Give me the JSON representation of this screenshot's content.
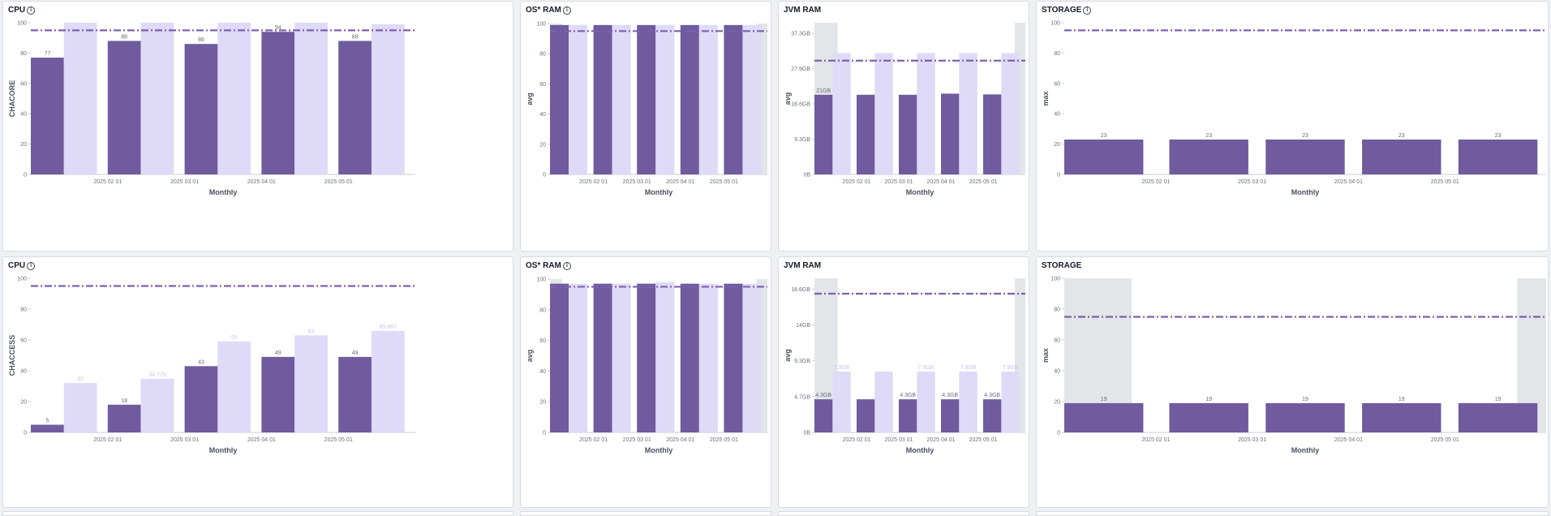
{
  "colors": {
    "primary": "#6f5b9e",
    "secondary": "#dedaf7",
    "gray": "#e3e5e9",
    "threshold": "#7b62b0"
  },
  "panels": [
    {
      "title": "CPU",
      "info": true,
      "ylabel": "CHACORE",
      "xlabel": "Monthly",
      "yticks": [
        "0",
        "20",
        "40",
        "60",
        "80",
        "100"
      ],
      "xticks": [
        "2025 02 01",
        "2025 03 01",
        "2025 04 01",
        "2025 05 01"
      ],
      "chart_data": {
        "type": "bar",
        "ylim": [
          0,
          100
        ],
        "threshold": 95,
        "series": [
          {
            "values": [
              77,
              88,
              86,
              94,
              88
            ],
            "labels": [
              "77",
              "88",
              "86",
              "94",
              "88"
            ]
          },
          {
            "values": [
              100,
              100,
              100,
              100,
              99
            ],
            "labels": [
              "",
              "",
              "",
              "",
              ""
            ]
          }
        ]
      }
    },
    {
      "title": "OS* RAM",
      "info": true,
      "ylabel": "avg",
      "xlabel": "Monthly",
      "yticks": [
        "0",
        "20",
        "40",
        "60",
        "80",
        "100"
      ],
      "xticks": [
        "2025 02 01",
        "2025 03 01",
        "2025 04 01",
        "2025 05 01"
      ],
      "chart_data": {
        "type": "bar",
        "ylim": [
          0,
          100
        ],
        "threshold": 95,
        "edge_gray": [
          100,
          100
        ],
        "series": [
          {
            "values": [
              99,
              99,
              99,
              99,
              99
            ],
            "labels": [
              "",
              "",
              "",
              "",
              ""
            ]
          },
          {
            "values": [
              99,
              99,
              99,
              99,
              99
            ],
            "labels": [
              "",
              "",
              "",
              "",
              ""
            ]
          }
        ]
      }
    },
    {
      "title": "JVM RAM",
      "info": false,
      "ylabel": "avg",
      "xlabel": "Monthly",
      "yticks": [
        "0B",
        "9.3GB",
        "18.6GB",
        "27.9GB",
        "37.3GB"
      ],
      "xticks": [
        "2025 02 01",
        "2025 03 01",
        "2025 04 01",
        "2025 05 01"
      ],
      "chart_data": {
        "type": "bar",
        "ylim": [
          0,
          40
        ],
        "threshold": 30,
        "edge_gray": [
          40,
          40
        ],
        "series": [
          {
            "values": [
              21,
              21,
              21,
              21.3,
              21.1
            ],
            "labels": [
              "21GB",
              "",
              "",
              "",
              ""
            ]
          },
          {
            "values": [
              32,
              32,
              32,
              32,
              32
            ],
            "labels": [
              "",
              "",
              "",
              "",
              ""
            ]
          }
        ]
      }
    },
    {
      "title": "STORAGE",
      "info": true,
      "ylabel": "max",
      "xlabel": "Monthly",
      "yticks": [
        "0",
        "20",
        "40",
        "60",
        "80",
        "100"
      ],
      "xticks": [
        "2025 02 01",
        "2025 03 01",
        "2025 04 01",
        "2025 05 01"
      ],
      "chart_data": {
        "type": "bar",
        "ylim": [
          0,
          100
        ],
        "threshold": 95,
        "single": true,
        "series": [
          {
            "values": [
              23,
              23,
              23,
              23,
              23
            ],
            "labels": [
              "23",
              "23",
              "23",
              "23",
              "23"
            ]
          }
        ]
      }
    },
    {
      "title": "CPU",
      "info": true,
      "ylabel": "CHACCESS",
      "xlabel": "Monthly",
      "yticks": [
        "0",
        "20",
        "40",
        "60",
        "80",
        "100"
      ],
      "xticks": [
        "2025 02 01",
        "2025 03 01",
        "2025 04 01",
        "2025 05 01"
      ],
      "chart_data": {
        "type": "bar",
        "ylim": [
          0,
          100
        ],
        "threshold": 95,
        "series": [
          {
            "values": [
              5,
              18,
              43,
              49,
              49
            ],
            "labels": [
              "5",
              "18",
              "43",
              "49",
              "49"
            ]
          },
          {
            "values": [
              32,
              34.775,
              59,
              63,
              65.887
            ],
            "labels": [
              "32",
              "34.775",
              "59",
              "63",
              "65.887"
            ]
          }
        ]
      }
    },
    {
      "title": "OS* RAM",
      "info": true,
      "ylabel": "avg",
      "xlabel": "Monthly",
      "yticks": [
        "0",
        "20",
        "40",
        "60",
        "80",
        "100"
      ],
      "xticks": [
        "2025 02 01",
        "2025 03 01",
        "2025 04 01",
        "2025 05 01"
      ],
      "chart_data": {
        "type": "bar",
        "ylim": [
          0,
          100
        ],
        "threshold": 95,
        "edge_gray": [
          100,
          100
        ],
        "series": [
          {
            "values": [
              97,
              97,
              97,
              97,
              97
            ],
            "labels": [
              "",
              "",
              "",
              "",
              ""
            ]
          },
          {
            "values": [
              97,
              97,
              98,
              97,
              97
            ],
            "labels": [
              "",
              "",
              "",
              "",
              ""
            ]
          }
        ]
      }
    },
    {
      "title": "JVM RAM",
      "info": false,
      "ylabel": "avg",
      "xlabel": "Monthly",
      "yticks": [
        "0B",
        "4.7GB",
        "9.3GB",
        "14GB",
        "18.6GB"
      ],
      "xticks": [
        "2025 02 01",
        "2025 03 01",
        "2025 04 01",
        "2025 05 01"
      ],
      "chart_data": {
        "type": "bar",
        "ylim": [
          0,
          20
        ],
        "threshold": 18,
        "edge_gray": [
          20,
          20
        ],
        "series": [
          {
            "values": [
              4.3,
              4.3,
              4.3,
              4.3,
              4.3
            ],
            "labels": [
              "4.3GB",
              "",
              "4.3GB",
              "4.3GB",
              "4.3GB"
            ]
          },
          {
            "values": [
              7.9,
              7.9,
              7.9,
              7.9,
              7.9
            ],
            "labels": [
              "7.9GB",
              "",
              "7.9GB",
              "7.9GB",
              "7.9GB"
            ]
          }
        ]
      }
    },
    {
      "title": "STORAGE",
      "info": false,
      "ylabel": "max",
      "xlabel": "Monthly",
      "yticks": [
        "0",
        "20",
        "40",
        "60",
        "80",
        "100"
      ],
      "xticks": [
        "2025 02 01",
        "2025 03 01",
        "2025 04 01",
        "2025 05 01"
      ],
      "chart_data": {
        "type": "bar",
        "ylim": [
          0,
          100
        ],
        "threshold": 75,
        "single": true,
        "edge_gray": [
          100,
          100
        ],
        "series": [
          {
            "values": [
              19,
              19,
              19,
              19,
              19
            ],
            "labels": [
              "19",
              "19",
              "19",
              "19",
              "19"
            ]
          }
        ]
      }
    }
  ]
}
